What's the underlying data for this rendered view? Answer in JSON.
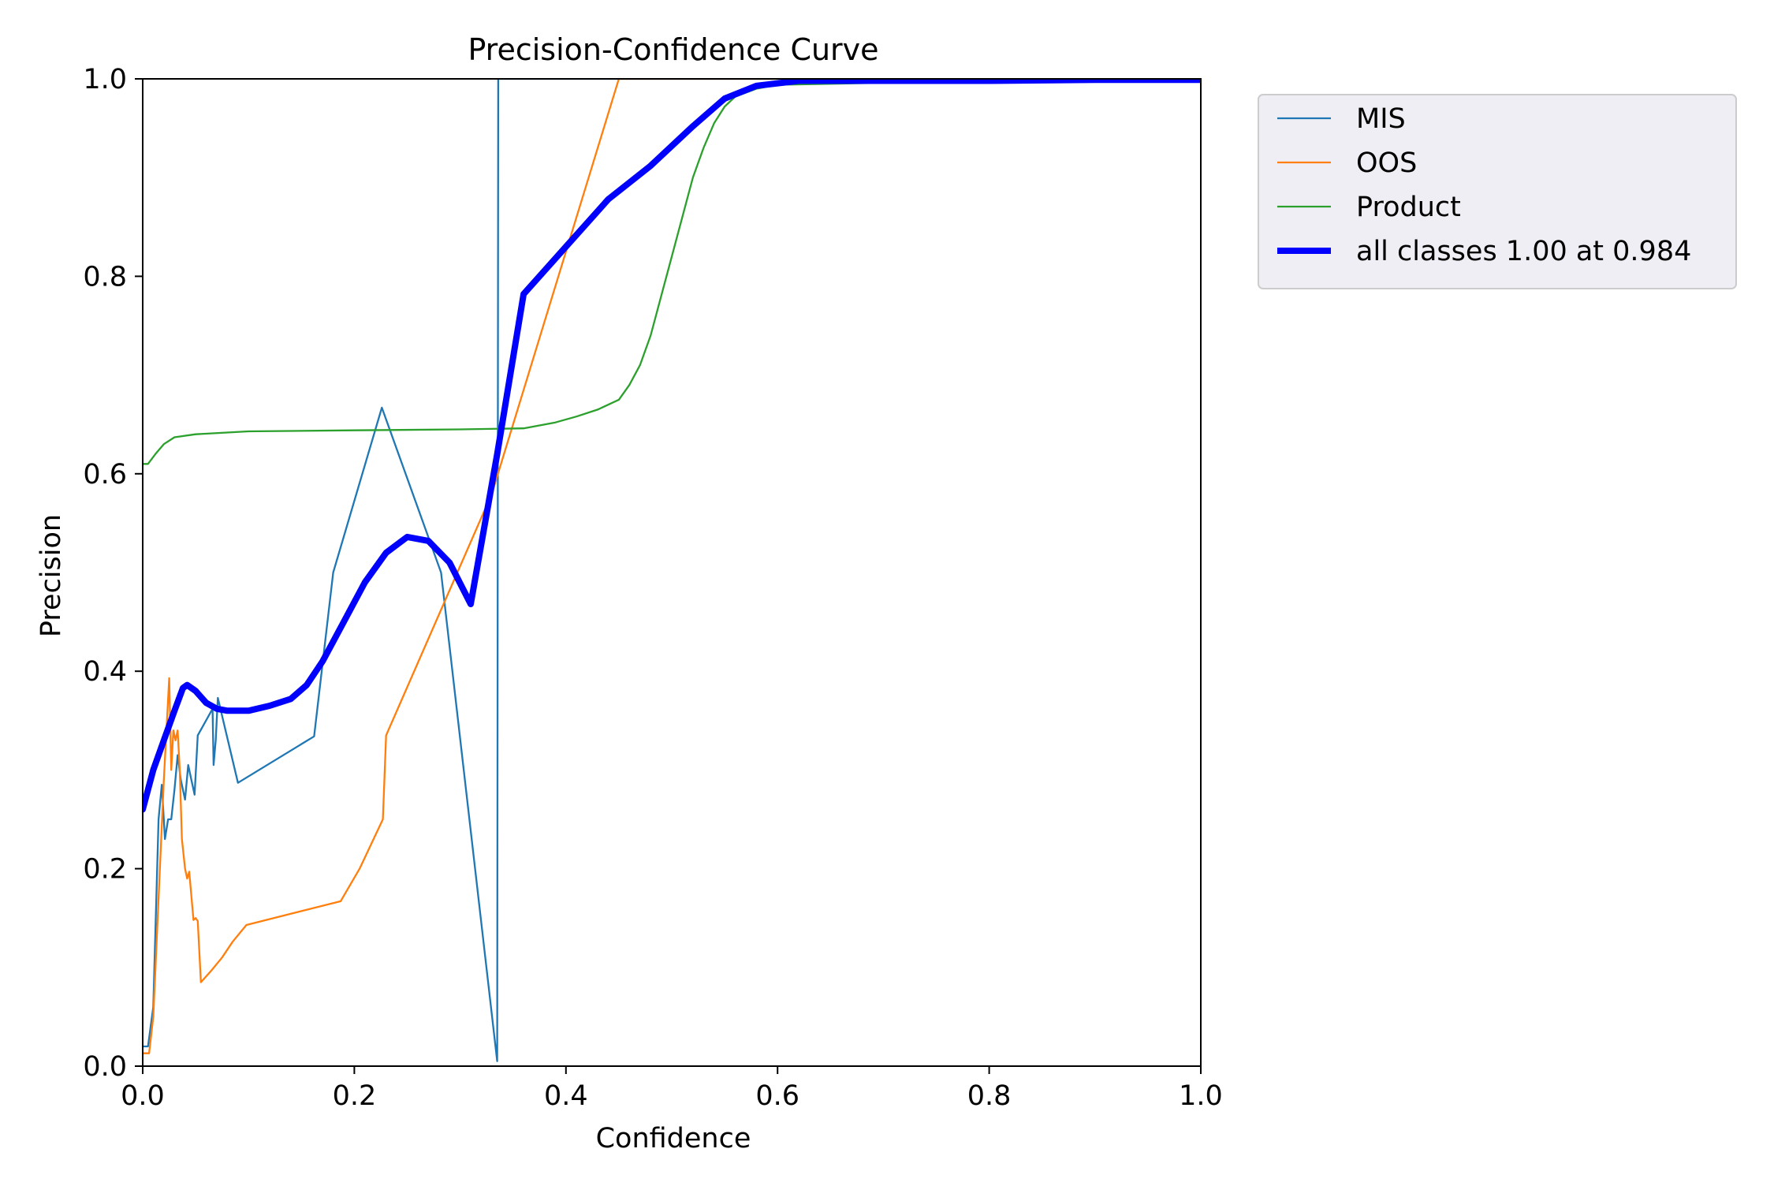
{
  "chart_data": {
    "type": "line",
    "title": "Precision-Confidence Curve",
    "xlabel": "Confidence",
    "ylabel": "Precision",
    "xlim": [
      0.0,
      1.0
    ],
    "ylim": [
      0.0,
      1.0
    ],
    "xticks": [
      "0.0",
      "0.2",
      "0.4",
      "0.6",
      "0.8",
      "1.0"
    ],
    "yticks": [
      "0.0",
      "0.2",
      "0.4",
      "0.6",
      "0.8",
      "1.0"
    ],
    "grid": false,
    "legend_position": "outside-top-right",
    "series": [
      {
        "name": "MIS",
        "color": "#1f77b4",
        "emphasis": "thin",
        "points": [
          [
            0.0,
            0.02
          ],
          [
            0.005,
            0.02
          ],
          [
            0.01,
            0.06
          ],
          [
            0.015,
            0.25
          ],
          [
            0.018,
            0.285
          ],
          [
            0.021,
            0.23
          ],
          [
            0.024,
            0.25
          ],
          [
            0.027,
            0.25
          ],
          [
            0.03,
            0.28
          ],
          [
            0.033,
            0.315
          ],
          [
            0.036,
            0.29
          ],
          [
            0.04,
            0.27
          ],
          [
            0.043,
            0.305
          ],
          [
            0.046,
            0.29
          ],
          [
            0.049,
            0.275
          ],
          [
            0.052,
            0.335
          ],
          [
            0.066,
            0.362
          ],
          [
            0.067,
            0.305
          ],
          [
            0.069,
            0.33
          ],
          [
            0.071,
            0.373
          ],
          [
            0.09,
            0.287
          ],
          [
            0.162,
            0.334
          ],
          [
            0.18,
            0.5
          ],
          [
            0.226,
            0.667
          ],
          [
            0.282,
            0.5
          ],
          [
            0.335,
            0.005
          ],
          [
            0.336,
            1.0
          ],
          [
            1.0,
            1.0
          ]
        ]
      },
      {
        "name": "OOS",
        "color": "#ff7f0e",
        "emphasis": "thin",
        "points": [
          [
            0.0,
            0.013
          ],
          [
            0.006,
            0.013
          ],
          [
            0.01,
            0.05
          ],
          [
            0.015,
            0.17
          ],
          [
            0.02,
            0.29
          ],
          [
            0.025,
            0.393
          ],
          [
            0.027,
            0.3
          ],
          [
            0.029,
            0.34
          ],
          [
            0.031,
            0.33
          ],
          [
            0.033,
            0.34
          ],
          [
            0.035,
            0.3
          ],
          [
            0.037,
            0.23
          ],
          [
            0.04,
            0.2
          ],
          [
            0.042,
            0.19
          ],
          [
            0.044,
            0.197
          ],
          [
            0.048,
            0.148
          ],
          [
            0.05,
            0.15
          ],
          [
            0.052,
            0.147
          ],
          [
            0.055,
            0.085
          ],
          [
            0.065,
            0.097
          ],
          [
            0.075,
            0.11
          ],
          [
            0.085,
            0.126
          ],
          [
            0.098,
            0.143
          ],
          [
            0.187,
            0.167
          ],
          [
            0.205,
            0.2
          ],
          [
            0.227,
            0.25
          ],
          [
            0.23,
            0.335
          ],
          [
            0.33,
            0.58
          ],
          [
            0.45,
            1.0
          ],
          [
            1.0,
            1.0
          ]
        ]
      },
      {
        "name": "Product",
        "color": "#2ca02c",
        "emphasis": "thin",
        "points": [
          [
            0.0,
            0.61
          ],
          [
            0.005,
            0.61
          ],
          [
            0.012,
            0.62
          ],
          [
            0.02,
            0.63
          ],
          [
            0.03,
            0.637
          ],
          [
            0.05,
            0.64
          ],
          [
            0.1,
            0.643
          ],
          [
            0.2,
            0.644
          ],
          [
            0.3,
            0.645
          ],
          [
            0.36,
            0.646
          ],
          [
            0.39,
            0.652
          ],
          [
            0.41,
            0.658
          ],
          [
            0.43,
            0.665
          ],
          [
            0.45,
            0.675
          ],
          [
            0.46,
            0.69
          ],
          [
            0.47,
            0.71
          ],
          [
            0.48,
            0.74
          ],
          [
            0.49,
            0.78
          ],
          [
            0.5,
            0.82
          ],
          [
            0.51,
            0.86
          ],
          [
            0.52,
            0.9
          ],
          [
            0.53,
            0.93
          ],
          [
            0.54,
            0.955
          ],
          [
            0.55,
            0.972
          ],
          [
            0.56,
            0.982
          ],
          [
            0.58,
            0.99
          ],
          [
            0.6,
            0.994
          ],
          [
            0.7,
            0.996
          ],
          [
            0.8,
            0.997
          ],
          [
            0.9,
            0.998
          ],
          [
            1.0,
            0.999
          ]
        ]
      },
      {
        "name": "all classes 1.00 at 0.984",
        "color": "#0000ff",
        "emphasis": "bold",
        "points": [
          [
            0.0,
            0.26
          ],
          [
            0.01,
            0.3
          ],
          [
            0.02,
            0.33
          ],
          [
            0.03,
            0.36
          ],
          [
            0.038,
            0.383
          ],
          [
            0.042,
            0.386
          ],
          [
            0.05,
            0.38
          ],
          [
            0.06,
            0.368
          ],
          [
            0.07,
            0.362
          ],
          [
            0.08,
            0.36
          ],
          [
            0.1,
            0.36
          ],
          [
            0.12,
            0.365
          ],
          [
            0.14,
            0.372
          ],
          [
            0.155,
            0.386
          ],
          [
            0.17,
            0.41
          ],
          [
            0.19,
            0.45
          ],
          [
            0.21,
            0.49
          ],
          [
            0.23,
            0.52
          ],
          [
            0.25,
            0.536
          ],
          [
            0.27,
            0.532
          ],
          [
            0.29,
            0.51
          ],
          [
            0.31,
            0.468
          ],
          [
            0.335,
            0.62
          ],
          [
            0.36,
            0.782
          ],
          [
            0.4,
            0.83
          ],
          [
            0.44,
            0.878
          ],
          [
            0.48,
            0.912
          ],
          [
            0.52,
            0.952
          ],
          [
            0.55,
            0.98
          ],
          [
            0.58,
            0.993
          ],
          [
            0.62,
            0.998
          ],
          [
            0.7,
            0.998
          ],
          [
            0.8,
            0.998
          ],
          [
            0.9,
            0.999
          ],
          [
            1.0,
            0.999
          ]
        ]
      }
    ]
  }
}
